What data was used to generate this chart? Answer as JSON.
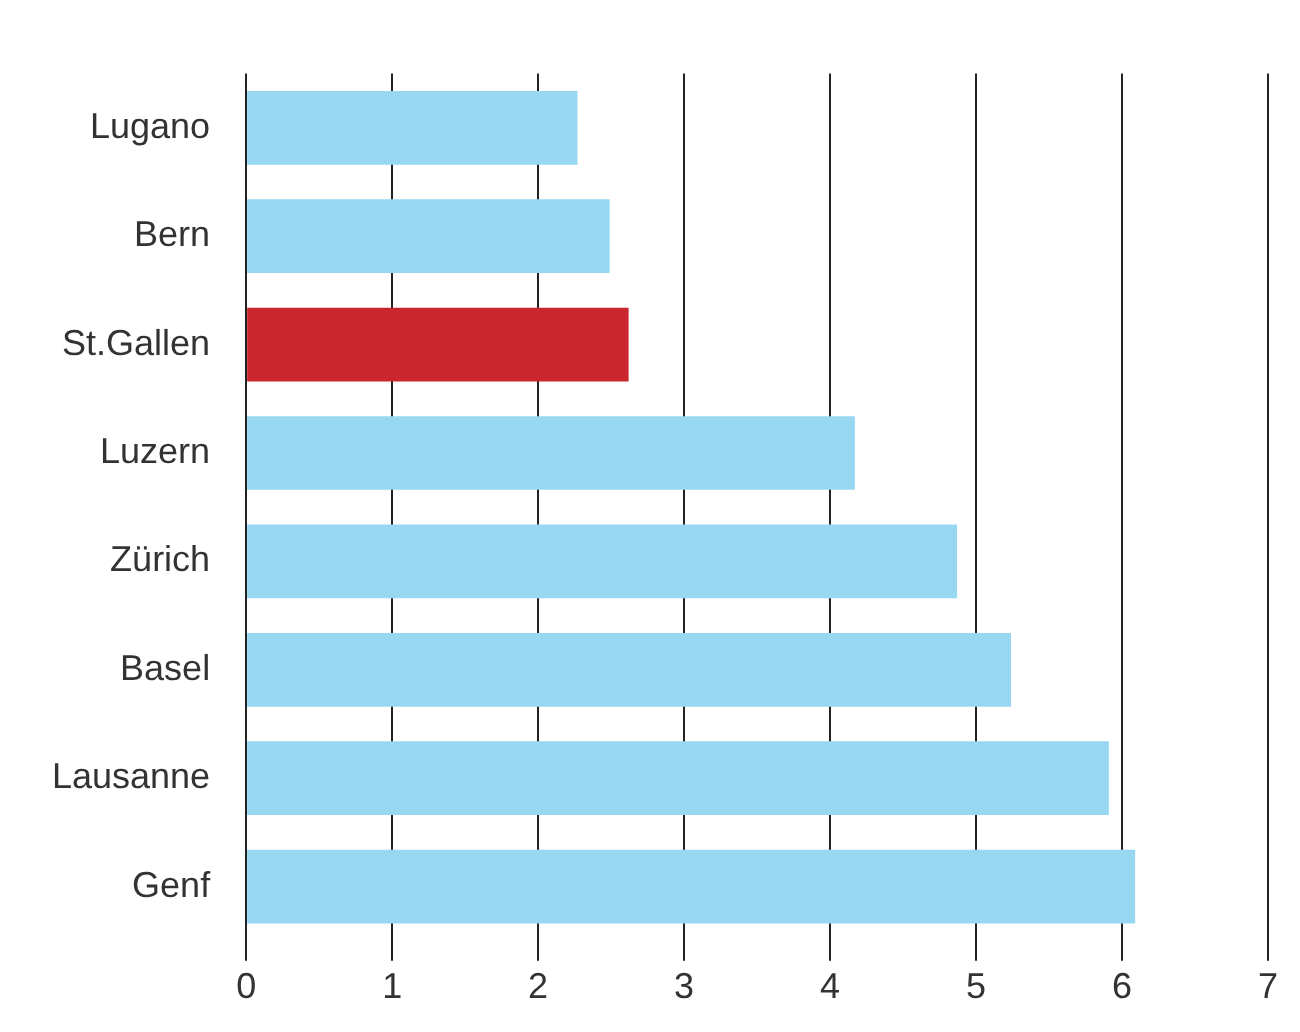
{
  "chart_data": {
    "type": "bar",
    "orientation": "horizontal",
    "categories": [
      "Lugano",
      "Bern",
      "St.Gallen",
      "Luzern",
      "Zürich",
      "Basel",
      "Lausanne",
      "Genf"
    ],
    "values": [
      2.27,
      2.49,
      2.62,
      4.17,
      4.87,
      5.24,
      5.91,
      6.09
    ],
    "colors": [
      "#97d7f2",
      "#97d7f2",
      "#c9262e",
      "#97d7f2",
      "#97d7f2",
      "#97d7f2",
      "#97d7f2",
      "#97d7f2"
    ],
    "xlim": [
      0,
      7
    ],
    "xticks": [
      0,
      1,
      2,
      3,
      4,
      5,
      6,
      7
    ],
    "grid": "x",
    "legend": false
  }
}
